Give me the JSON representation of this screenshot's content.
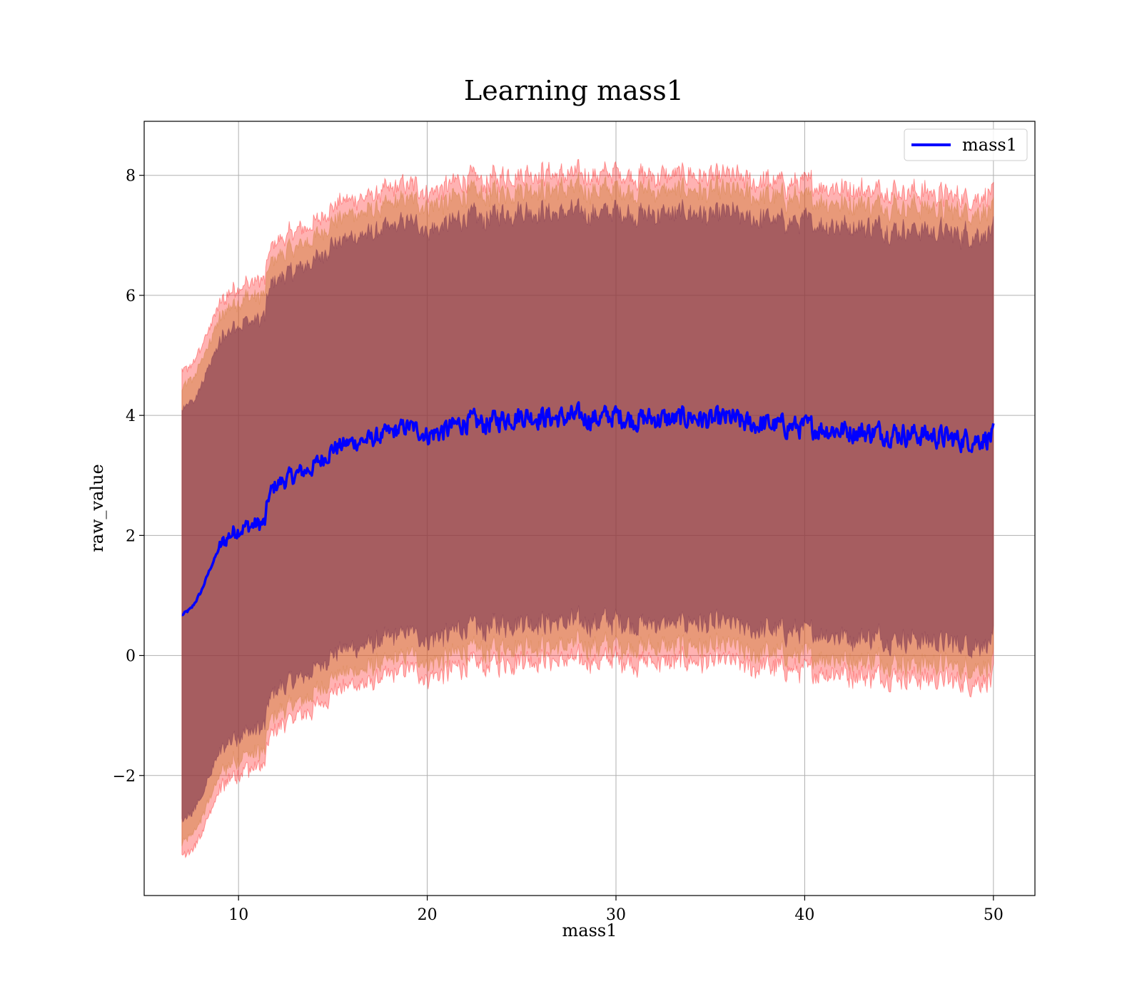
{
  "chart_data": {
    "type": "line",
    "title": "Learning mass1",
    "xlabel": "mass1",
    "ylabel": "raw_value",
    "xlim": [
      5,
      52.2
    ],
    "ylim": [
      -4,
      8.9
    ],
    "xticks": [
      10,
      20,
      30,
      40,
      50
    ],
    "yticks": [
      -2,
      0,
      2,
      4,
      6,
      8
    ],
    "ytick_labels": [
      "−2",
      "0",
      "2",
      "4",
      "6",
      "8"
    ],
    "grid": true,
    "legend": {
      "placement": "top-right",
      "entries": [
        "mass1"
      ]
    },
    "colors": {
      "line": "#0000ff",
      "band_outer": "#ff0000",
      "band_mid": "#cc7a33",
      "band_inner": "#6f2b4d"
    },
    "series": [
      {
        "name": "mass1",
        "x": [
          7,
          7.5,
          8,
          8.5,
          9,
          9.5,
          10,
          10.5,
          11,
          11.4,
          11.6,
          12,
          13,
          14,
          15,
          16,
          17,
          18,
          19,
          20,
          21,
          22,
          23,
          24,
          25,
          26,
          27,
          28,
          29,
          30,
          31,
          32,
          33,
          34,
          35,
          36,
          37,
          38,
          39,
          40,
          41,
          42,
          43,
          44,
          45,
          46,
          47,
          48,
          49,
          50
        ],
        "y": [
          0.67,
          0.78,
          1.05,
          1.45,
          1.8,
          2.0,
          2.12,
          2.15,
          2.18,
          2.2,
          2.65,
          2.85,
          3.0,
          3.15,
          3.45,
          3.55,
          3.6,
          3.7,
          3.82,
          3.68,
          3.75,
          3.9,
          3.85,
          3.95,
          4.0,
          3.98,
          3.95,
          3.97,
          3.95,
          4.0,
          3.93,
          3.95,
          3.92,
          3.98,
          3.9,
          3.95,
          3.85,
          3.85,
          3.82,
          3.8,
          3.78,
          3.75,
          3.72,
          3.72,
          3.7,
          3.68,
          3.65,
          3.6,
          3.6,
          3.65
        ]
      }
    ],
    "bands": [
      {
        "level": "outer",
        "offset": 4.05
      },
      {
        "level": "mid",
        "offset": 3.8
      },
      {
        "level": "inner",
        "offset": 3.42
      }
    ]
  }
}
